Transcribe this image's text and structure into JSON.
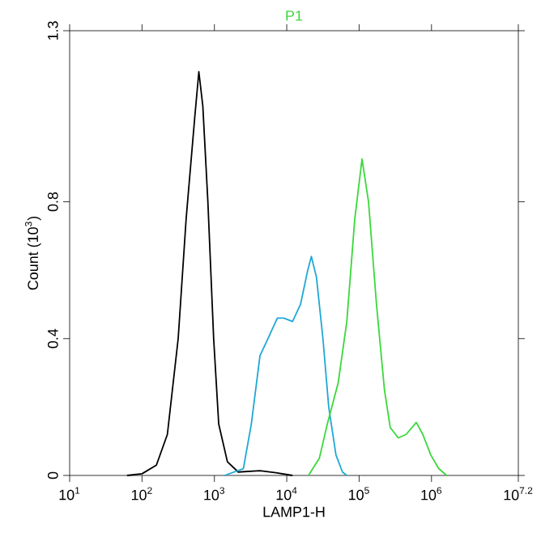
{
  "chart_data": {
    "type": "line",
    "xlabel": "LAMP1-H",
    "ylabel": "Count (10$^{3}$)",
    "log": "x",
    "legend": "top",
    "xlim": [
      10,
      15848932
    ],
    "ylim": [
      0,
      1.3
    ],
    "xticks": [
      {
        "value": 10,
        "label": "10$^{1}$"
      },
      {
        "value": 100,
        "label": "10$^{2}$"
      },
      {
        "value": 1000,
        "label": "10$^{3}$"
      },
      {
        "value": 10000,
        "label": "10$^{4}$"
      },
      {
        "value": 100000,
        "label": "10$^{5}$"
      },
      {
        "value": 1000000,
        "label": "10$^{6}$"
      },
      {
        "value": 15848932,
        "label": "10$^{7.2}$"
      }
    ],
    "yticks": [
      0,
      0.4,
      0.8,
      1.3
    ],
    "series": [
      {
        "color": "#000000",
        "x": [
          62,
          100,
          158,
          224,
          316,
          407,
          537,
          610,
          692,
          813,
          977,
          1148,
          1514,
          2138,
          4266,
          7079,
          12023
        ],
        "values": [
          0,
          0.005,
          0.03,
          0.12,
          0.4,
          0.75,
          1.05,
          1.18,
          1.08,
          0.8,
          0.4,
          0.15,
          0.04,
          0.01,
          0.014,
          0.008,
          0
        ]
      },
      {
        "color": "#1ea8d6",
        "x": [
          1380,
          2512,
          3236,
          4266,
          5495,
          7413,
          9120,
          12023,
          15488,
          19498,
          21878,
          25704,
          31623,
          38019,
          47863,
          58884,
          67608
        ],
        "values": [
          0,
          0.02,
          0.15,
          0.35,
          0.4,
          0.46,
          0.46,
          0.45,
          0.5,
          0.6,
          0.64,
          0.58,
          0.4,
          0.2,
          0.06,
          0.01,
          0
        ]
      },
      {
        "name": "P1",
        "color": "#3ad83a",
        "x": [
          19953,
          28184,
          36308,
          51286,
          67608,
          87096,
          109648,
          134896,
          173780,
          223872,
          269153,
          346737,
          446684,
          616595,
          758578,
          977237,
          1258925,
          1621810
        ],
        "values": [
          0,
          0.05,
          0.15,
          0.27,
          0.45,
          0.75,
          0.925,
          0.8,
          0.5,
          0.25,
          0.14,
          0.11,
          0.12,
          0.155,
          0.12,
          0.06,
          0.02,
          0
        ]
      }
    ]
  }
}
